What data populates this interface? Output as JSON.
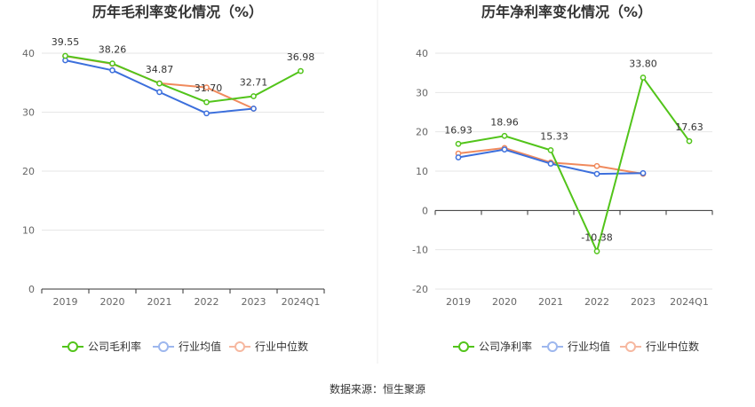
{
  "source": "数据来源：恒生聚源",
  "colors": {
    "company": "#52c41a",
    "industry_avg": "#3c6fdc",
    "industry_median": "#f08a5d",
    "legend_avg": "#9db7ee",
    "legend_median": "#f6b8a0",
    "grid": "#e6e6e6",
    "axis": "#333333"
  },
  "chart_data": [
    {
      "type": "line",
      "title": "历年毛利率变化情况（%）",
      "categories": [
        "2019",
        "2020",
        "2021",
        "2022",
        "2023",
        "2024Q1"
      ],
      "ylim": [
        0,
        40
      ],
      "yticks": [
        0,
        10,
        20,
        30,
        40
      ],
      "grid": true,
      "legend_position": "bottom",
      "series": [
        {
          "name": "公司毛利率",
          "key": "company",
          "values": [
            39.55,
            38.26,
            34.87,
            31.7,
            32.71,
            36.98
          ],
          "labels": [
            "39.55",
            "38.26",
            "34.87",
            "31.70",
            "32.71",
            "36.98"
          ]
        },
        {
          "name": "行业均值",
          "key": "industry_avg",
          "values": [
            38.8,
            37.1,
            33.4,
            29.8,
            30.6,
            null
          ]
        },
        {
          "name": "行业中位数",
          "key": "industry_median",
          "values": [
            39.5,
            38.2,
            34.9,
            34.2,
            30.6,
            null
          ]
        }
      ]
    },
    {
      "type": "line",
      "title": "历年净利率变化情况（%）",
      "categories": [
        "2019",
        "2020",
        "2021",
        "2022",
        "2023",
        "2024Q1"
      ],
      "ylim": [
        -20,
        40
      ],
      "yticks": [
        -20,
        -10,
        0,
        10,
        20,
        30,
        40
      ],
      "grid": true,
      "legend_position": "bottom",
      "series": [
        {
          "name": "公司净利率",
          "key": "company",
          "values": [
            16.93,
            18.96,
            15.33,
            -10.38,
            33.8,
            17.63
          ],
          "labels": [
            "16.93",
            "18.96",
            "15.33",
            "-10.38",
            "33.80",
            "17.63"
          ]
        },
        {
          "name": "行业均值",
          "key": "industry_avg",
          "values": [
            13.5,
            15.5,
            11.9,
            9.3,
            9.5,
            null
          ]
        },
        {
          "name": "行业中位数",
          "key": "industry_median",
          "values": [
            14.5,
            15.9,
            12.2,
            11.3,
            9.3,
            null
          ]
        }
      ]
    }
  ]
}
